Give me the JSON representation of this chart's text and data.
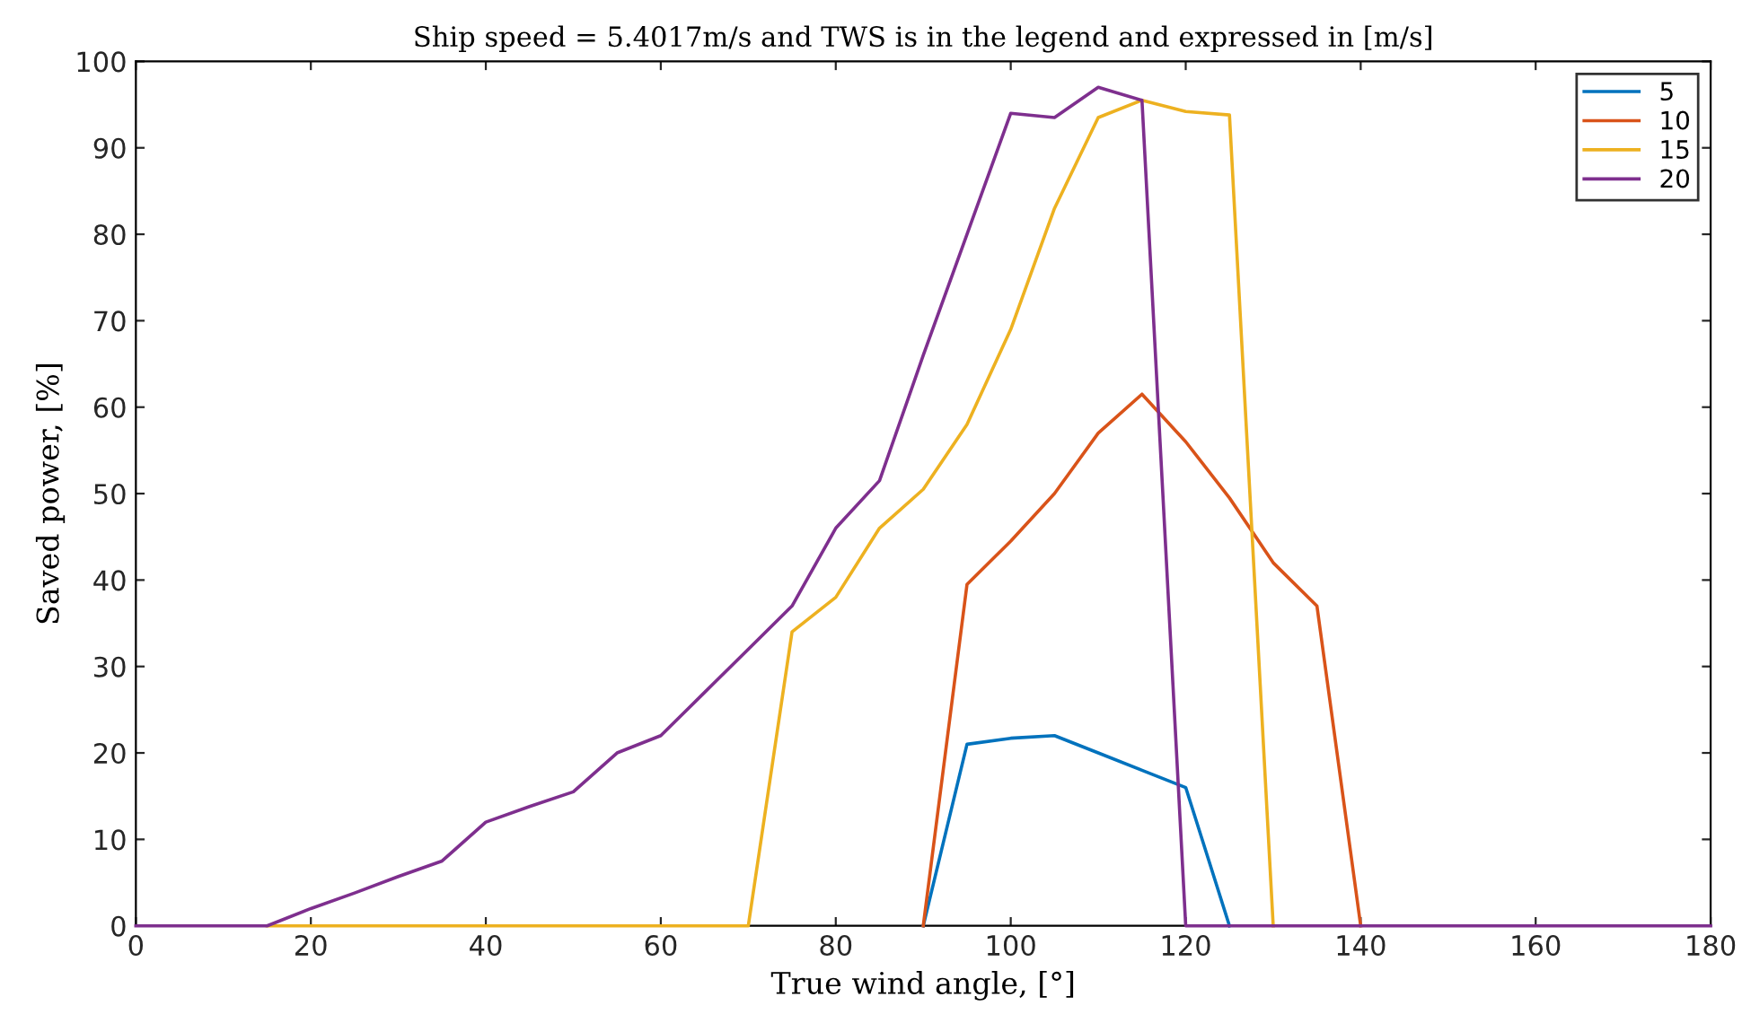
{
  "chart_data": {
    "type": "line",
    "title": "Ship speed = 5.4017m/s and TWS is in the legend and expressed in [m/s]",
    "xlabel": "True wind angle, [°]",
    "ylabel": "Saved power, [%]",
    "x": [
      0,
      5,
      10,
      15,
      20,
      25,
      30,
      35,
      40,
      45,
      50,
      55,
      60,
      65,
      70,
      75,
      80,
      85,
      90,
      95,
      100,
      105,
      110,
      115,
      120,
      125,
      130,
      135,
      140,
      145,
      150,
      155,
      160,
      165,
      170,
      175,
      180
    ],
    "series": [
      {
        "name": "5",
        "color": "#0072bd",
        "values": [
          null,
          null,
          null,
          null,
          null,
          null,
          null,
          null,
          null,
          null,
          null,
          null,
          null,
          null,
          null,
          null,
          null,
          null,
          0,
          21,
          21.7,
          22,
          20,
          18,
          16,
          0,
          null,
          null,
          null,
          null,
          null,
          null,
          null,
          null,
          null,
          null,
          null
        ]
      },
      {
        "name": "10",
        "color": "#d95319",
        "values": [
          null,
          null,
          null,
          null,
          null,
          null,
          null,
          null,
          null,
          null,
          null,
          null,
          null,
          null,
          null,
          null,
          null,
          null,
          0,
          39.5,
          44.5,
          50,
          57,
          61.5,
          56,
          49.5,
          42,
          37,
          0,
          null,
          null,
          null,
          null,
          null,
          null,
          null,
          null
        ]
      },
      {
        "name": "15",
        "color": "#edb120",
        "values": [
          null,
          null,
          null,
          0,
          0,
          0,
          0,
          0,
          0,
          0,
          0,
          0,
          0,
          0,
          0,
          34,
          38,
          46,
          50.5,
          58,
          69,
          83,
          93.5,
          95.5,
          94.2,
          93.8,
          0,
          null,
          null,
          null,
          null,
          null,
          null,
          null,
          null,
          null,
          null
        ]
      },
      {
        "name": "20",
        "color": "#7e2f8e",
        "values": [
          0,
          0,
          0,
          0,
          2,
          3.8,
          5.7,
          7.5,
          12,
          13.8,
          15.5,
          20,
          22,
          27,
          32,
          37,
          46,
          51.5,
          66,
          80,
          94,
          93.5,
          97,
          95.5,
          0,
          0,
          0,
          0,
          0,
          0,
          0,
          0,
          0,
          0,
          0,
          0,
          0
        ]
      }
    ],
    "xlim": [
      0,
      180
    ],
    "xticks": [
      0,
      20,
      40,
      60,
      80,
      100,
      120,
      140,
      160,
      180
    ],
    "ylim": [
      0,
      100
    ],
    "yticks": [
      0,
      10,
      20,
      30,
      40,
      50,
      60,
      70,
      80,
      90,
      100
    ],
    "legend": "top right",
    "grid": false,
    "marker": "none",
    "line_style": "solid"
  }
}
